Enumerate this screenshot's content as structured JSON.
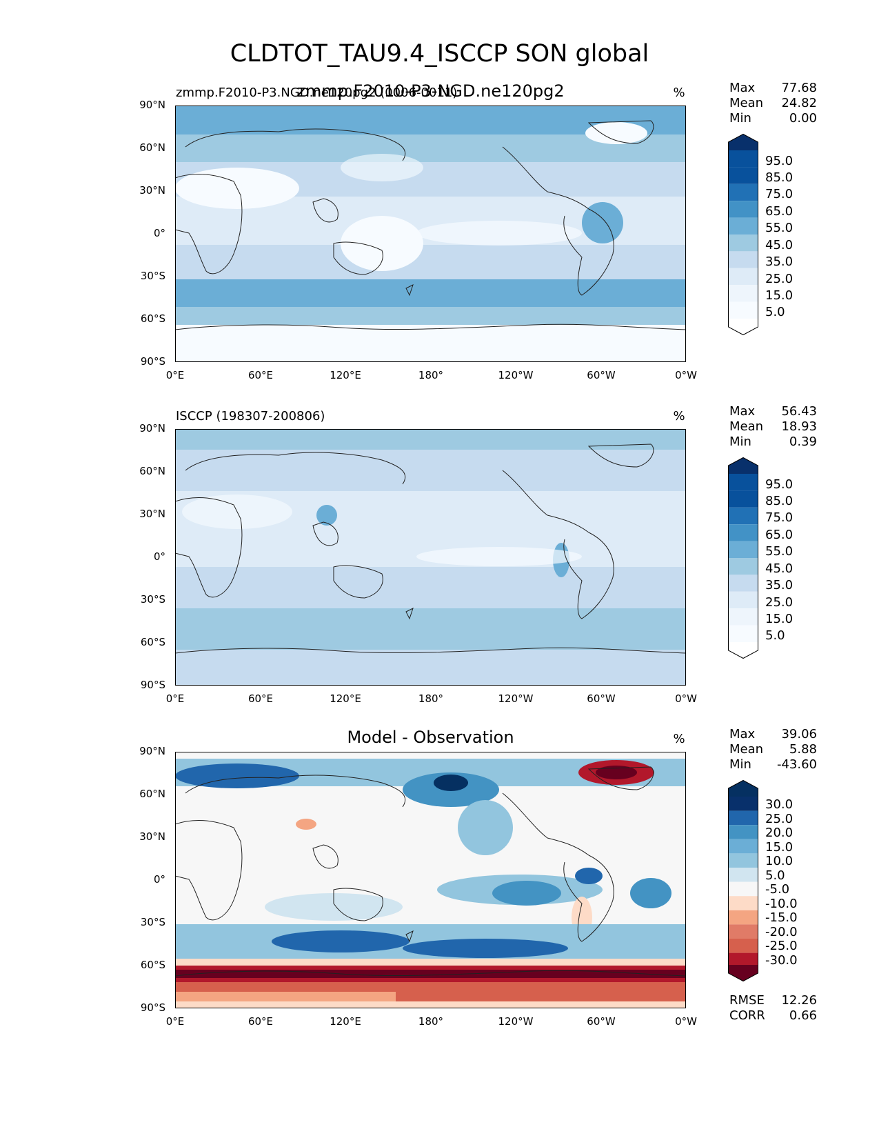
{
  "title": "CLDTOT_TAU9.4_ISCCP SON global",
  "units": "%",
  "lat_ticks": [
    "90°N",
    "60°N",
    "30°N",
    "0°",
    "30°S",
    "60°S",
    "90°S"
  ],
  "lon_ticks": [
    "0°E",
    "60°E",
    "120°E",
    "180°",
    "120°W",
    "60°W",
    "0°W"
  ],
  "panels": [
    {
      "left_title": "zmmp.F2010-P3.NGD.ne120pg2 (0006-0011)",
      "center_title": "zmmp.F2010-P3-NGD.ne120pg2",
      "stats": {
        "max_label": "Max",
        "max": "77.68",
        "mean_label": "Mean",
        "mean": "24.82",
        "min_label": "Min",
        "min": "0.00"
      },
      "colorbar": [
        "95.0",
        "85.0",
        "75.0",
        "65.0",
        "55.0",
        "45.0",
        "35.0",
        "25.0",
        "15.0",
        "5.0"
      ]
    },
    {
      "left_title": "ISCCP (198307-200806)",
      "stats": {
        "max_label": "Max",
        "max": "56.43",
        "mean_label": "Mean",
        "mean": "18.93",
        "min_label": "Min",
        "min": "0.39"
      },
      "colorbar": [
        "95.0",
        "85.0",
        "75.0",
        "65.0",
        "55.0",
        "45.0",
        "35.0",
        "25.0",
        "15.0",
        "5.0"
      ]
    },
    {
      "center_title": "Model - Observation",
      "stats": {
        "max_label": "Max",
        "max": "39.06",
        "mean_label": "Mean",
        "mean": "5.88",
        "min_label": "Min",
        "min": "-43.60"
      },
      "colorbar": [
        "30.0",
        "25.0",
        "20.0",
        "15.0",
        "10.0",
        "5.0",
        "-5.0",
        "-10.0",
        "-15.0",
        "-20.0",
        "-25.0",
        "-30.0"
      ],
      "metrics": {
        "rmse_label": "RMSE",
        "rmse": "12.26",
        "corr_label": "CORR",
        "corr": "0.66"
      }
    }
  ],
  "colors": {
    "blues": [
      "#f7fbff",
      "#deebf7",
      "#c6dbef",
      "#9ecae1",
      "#6baed6",
      "#4292c6",
      "#2171b5",
      "#08519c",
      "#08306b"
    ],
    "diff": [
      "#67001f",
      "#b2182b",
      "#d6604d",
      "#f4a582",
      "#fddbc7",
      "#f7f7f7",
      "#d1e5f0",
      "#92c5de",
      "#4393c3",
      "#2166ac",
      "#053061"
    ]
  }
}
